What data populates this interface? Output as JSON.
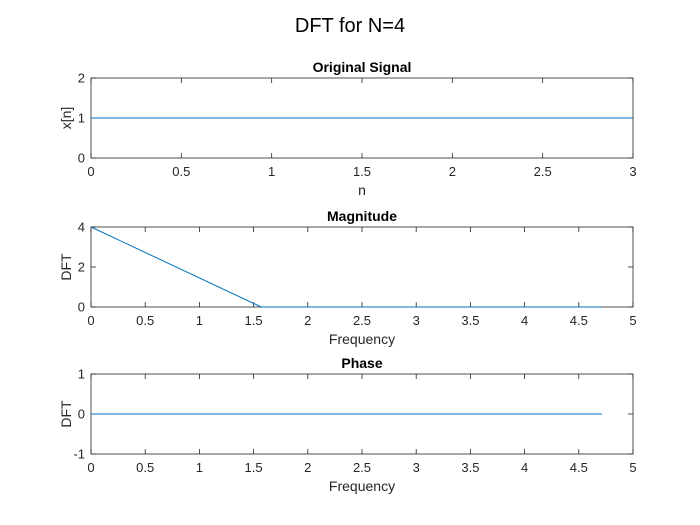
{
  "figure_title": "DFT for N=4",
  "colors": {
    "series": "#0072BD",
    "axes": "#262626",
    "background": "#ffffff"
  },
  "chart_data": [
    {
      "type": "line",
      "title": "Original Signal",
      "xlabel": "n",
      "ylabel": "x[n]",
      "xlim": [
        0,
        3
      ],
      "ylim": [
        0,
        2
      ],
      "xticks": [
        0,
        0.5,
        1,
        1.5,
        2,
        2.5,
        3
      ],
      "xtick_labels": [
        "0",
        "0.5",
        "1",
        "1.5",
        "2",
        "2.5",
        "3"
      ],
      "yticks": [
        0,
        1,
        2
      ],
      "ytick_labels": [
        "0",
        "1",
        "2"
      ],
      "grid": false,
      "series": [
        {
          "x": [
            0,
            1,
            2,
            3
          ],
          "y": [
            1,
            1,
            1,
            1
          ]
        }
      ]
    },
    {
      "type": "line",
      "title": "Magnitude",
      "xlabel": "Frequency",
      "ylabel": "DFT",
      "xlim": [
        0,
        5
      ],
      "ylim": [
        0,
        4
      ],
      "xticks": [
        0,
        0.5,
        1,
        1.5,
        2,
        2.5,
        3,
        3.5,
        4,
        4.5,
        5
      ],
      "xtick_labels": [
        "0",
        "0.5",
        "1",
        "1.5",
        "2",
        "2.5",
        "3",
        "3.5",
        "4",
        "4.5",
        "5"
      ],
      "yticks": [
        0,
        2,
        4
      ],
      "ytick_labels": [
        "0",
        "2",
        "4"
      ],
      "grid": false,
      "series": [
        {
          "x": [
            0,
            1.5708,
            3.1416,
            4.7124
          ],
          "y": [
            4,
            0,
            0,
            0
          ]
        }
      ]
    },
    {
      "type": "line",
      "title": "Phase",
      "xlabel": "Frequency",
      "ylabel": "DFT",
      "xlim": [
        0,
        5
      ],
      "ylim": [
        -1,
        1
      ],
      "xticks": [
        0,
        0.5,
        1,
        1.5,
        2,
        2.5,
        3,
        3.5,
        4,
        4.5,
        5
      ],
      "xtick_labels": [
        "0",
        "0.5",
        "1",
        "1.5",
        "2",
        "2.5",
        "3",
        "3.5",
        "4",
        "4.5",
        "5"
      ],
      "yticks": [
        -1,
        0,
        1
      ],
      "ytick_labels": [
        "-1",
        "0",
        "1"
      ],
      "grid": false,
      "series": [
        {
          "x": [
            0,
            1.5708,
            3.1416,
            4.7124
          ],
          "y": [
            0,
            0,
            0,
            0
          ]
        }
      ]
    }
  ]
}
